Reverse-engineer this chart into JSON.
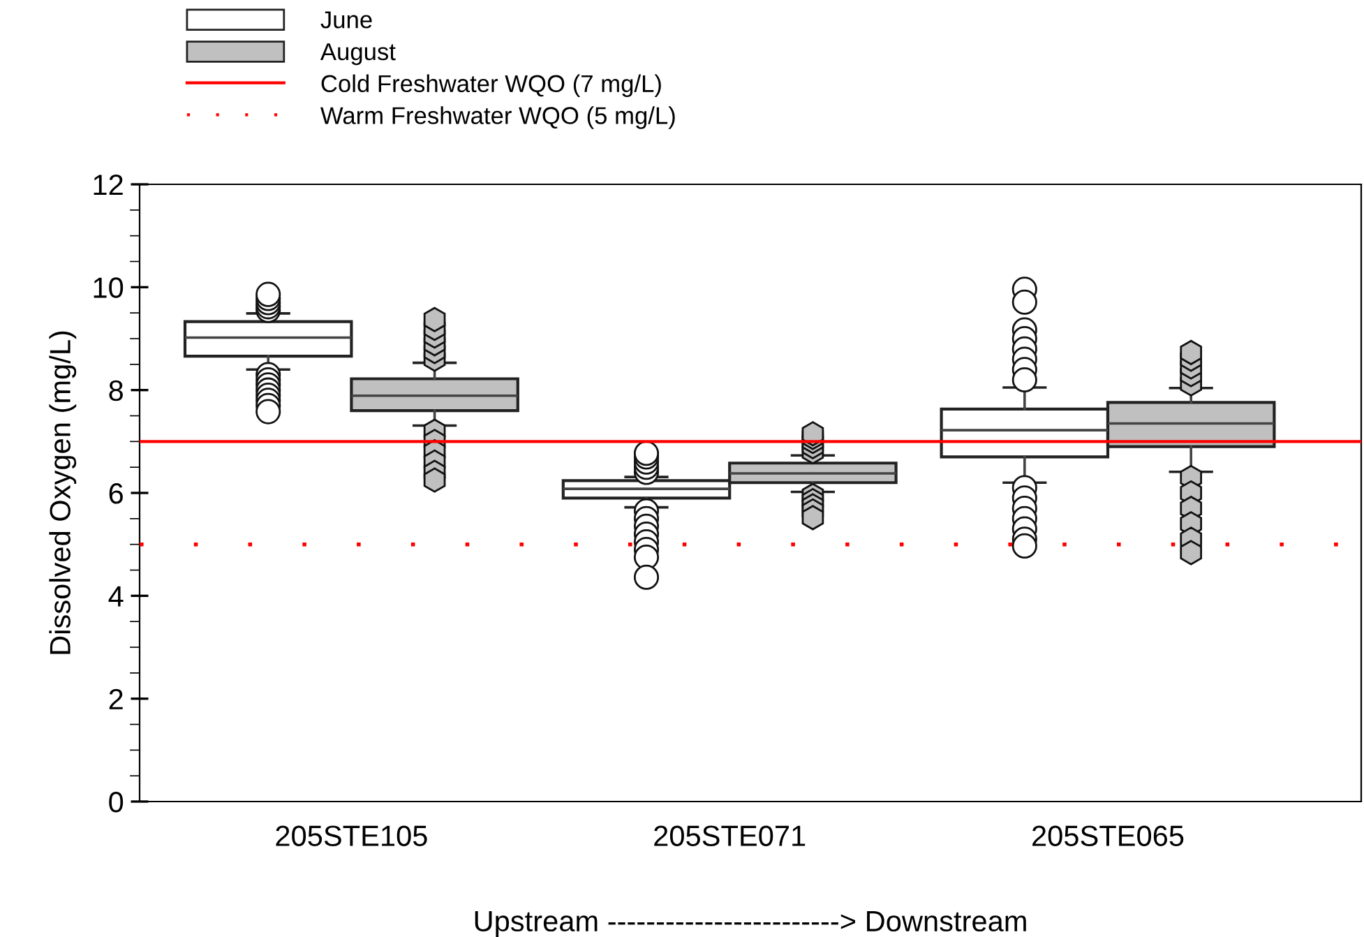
{
  "chart_data": {
    "type": "box",
    "ylabel": "Dissolved Oxygen (mg/L)",
    "xlabel": "Upstream ------------------------> Downstream",
    "categories": [
      "205STE105",
      "205STE071",
      "205STE065"
    ],
    "series": [
      {
        "name": "June",
        "color": "#ffffff",
        "marker": "circle",
        "boxes": [
          {
            "low": 8.4,
            "q1": 8.66,
            "median": 9.02,
            "q3": 9.33,
            "high": 9.49,
            "outliers": [
              9.55,
              9.62,
              9.7,
              9.78,
              9.86,
              8.3,
              8.2,
              8.1,
              8.0,
              7.9,
              7.8,
              7.7,
              7.58
            ]
          },
          {
            "low": 5.72,
            "q1": 5.9,
            "median": 6.08,
            "q3": 6.24,
            "high": 6.31,
            "outliers": [
              6.4,
              6.5,
              6.6,
              6.7,
              6.77,
              5.65,
              5.5,
              5.35,
              5.2,
              5.05,
              4.9,
              4.75,
              4.36
            ]
          },
          {
            "low": 6.2,
            "q1": 6.7,
            "median": 7.22,
            "q3": 7.63,
            "high": 8.05,
            "outliers": [
              9.96,
              9.71,
              9.17,
              9.0,
              8.8,
              8.6,
              8.4,
              8.2,
              6.1,
              5.9,
              5.7,
              5.5,
              5.3,
              5.1,
              4.97
            ]
          }
        ]
      },
      {
        "name": "August",
        "color": "#c0c0c0",
        "marker": "hexagon",
        "boxes": [
          {
            "low": 7.31,
            "q1": 7.6,
            "median": 7.89,
            "q3": 8.22,
            "high": 8.53,
            "outliers": [
              8.6,
              8.75,
              8.9,
              9.05,
              9.2,
              9.37,
              7.2,
              7.0,
              6.8,
              6.6,
              6.4,
              6.25
            ]
          },
          {
            "low": 6.02,
            "q1": 6.2,
            "median": 6.38,
            "q3": 6.58,
            "high": 6.73,
            "outliers": [
              6.8,
              6.9,
              7.0,
              7.08,
              7.15,
              5.95,
              5.85,
              5.75,
              5.65,
              5.52
            ]
          },
          {
            "low": 6.41,
            "q1": 6.9,
            "median": 7.35,
            "q3": 7.76,
            "high": 8.04,
            "outliers": [
              8.12,
              8.3,
              8.45,
              8.6,
              8.73,
              6.3,
              6.0,
              5.7,
              5.4,
              5.1,
              4.84
            ]
          }
        ]
      }
    ],
    "ylim": [
      0,
      12
    ],
    "yticks": [
      0,
      {
        "value": 0.5,
        "label": null
      },
      2,
      {
        "value": 1,
        "label": null
      },
      {
        "value": 1.5,
        "label": null
      },
      {
        "value": 2.5,
        "label": null
      },
      4,
      {
        "value": 3,
        "label": null
      },
      {
        "value": 3.5,
        "label": null
      },
      {
        "value": 4.5,
        "label": null
      },
      6,
      {
        "value": 5,
        "label": null
      },
      {
        "value": 5.5,
        "label": null
      },
      {
        "value": 6.5,
        "label": null
      },
      8,
      {
        "value": 7,
        "label": null
      },
      {
        "value": 7.5,
        "label": null
      },
      {
        "value": 8.5,
        "label": null
      },
      10,
      {
        "value": 9,
        "label": null
      },
      {
        "value": 9.5,
        "label": null
      },
      {
        "value": 10.5,
        "label": null
      },
      12,
      {
        "value": 11,
        "label": null
      },
      {
        "value": 11.5,
        "label": null
      }
    ],
    "ref_lines": [
      {
        "axis": "y",
        "value": 7,
        "label": "Cold Freshwater WQO (7 mg/L)",
        "color": "#ff0000",
        "line_style": "solid"
      },
      {
        "axis": "y",
        "value": 5,
        "label": "Warm Freshwater WQO (5 mg/L)",
        "color": "#ff0000",
        "line_style": "dotted"
      }
    ],
    "legend": "top left",
    "grid": false
  }
}
